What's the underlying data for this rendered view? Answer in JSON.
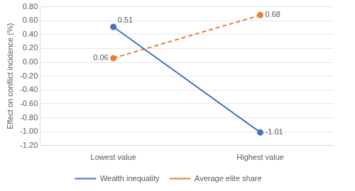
{
  "chart_data": {
    "type": "line",
    "y_label": "Effect on conflict incidence (%)",
    "categories": [
      "Lowest value",
      "Highest value"
    ],
    "series": [
      {
        "name": "Wealth inequality",
        "color": "#4472c4",
        "values": [
          0.51,
          -1.01
        ],
        "marker": "circle",
        "line_style": "solid"
      },
      {
        "name": "Average elite share",
        "color": "#ed7d31",
        "values": [
          0.06,
          0.68
        ],
        "marker": "circle",
        "line_style": "dashed"
      }
    ],
    "ylim": [
      -1.2,
      0.8
    ],
    "yticks": [
      {
        "value": -1.2,
        "label": "-1.20"
      },
      {
        "value": -1.0,
        "label": "-1.00"
      },
      {
        "value": -0.8,
        "label": "-0.80"
      },
      {
        "value": -0.6,
        "label": "-0.60"
      },
      {
        "value": -0.4,
        "label": "-0.40"
      },
      {
        "value": -0.2,
        "label": "-0.20"
      },
      {
        "value": 0,
        "label": "0.00"
      },
      {
        "value": 0.2,
        "label": "0.20"
      },
      {
        "value": 0.4,
        "label": "0.40"
      },
      {
        "value": 0.6,
        "label": "0.60"
      },
      {
        "value": 0.8,
        "label": "0.80"
      }
    ],
    "grid": true,
    "legend": "bottom",
    "data_labels": true
  }
}
